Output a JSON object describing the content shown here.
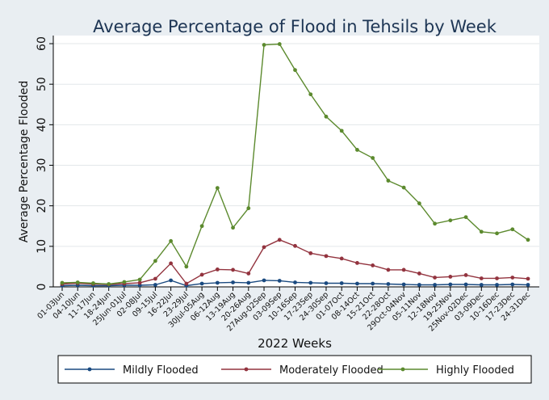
{
  "chart_data": {
    "type": "line",
    "title": "Average Percentage of Flood in Tehsils by Week",
    "xlabel": "2022 Weeks",
    "ylabel": "Average Percentage Flooded",
    "ylim": [
      0,
      62
    ],
    "yticks": [
      0,
      10,
      20,
      30,
      40,
      50,
      60
    ],
    "grid": true,
    "legend_position": "bottom",
    "categories": [
      "01-03Jun",
      "04-10Jun",
      "11-17Jun",
      "18-24Jun",
      "25Jun-01Jul",
      "02-08Jul",
      "09-15Jul",
      "16-22Jul",
      "23-29Jul",
      "30Jul-05Aug",
      "06-12Aug",
      "13-19Aug",
      "20-26Aug",
      "27Aug-02Sep",
      "03-09Sep",
      "10-16Sep",
      "17-23Sep",
      "24-30Sep",
      "01-07Oct",
      "08-14Oct",
      "15-21Oct",
      "22-28Oct",
      "29Oct-04Nov",
      "05-11Nov",
      "12-18Nov",
      "19-25Nov",
      "25Nov-02Dec",
      "03-09Dec",
      "10-16Dec",
      "17-23Dec",
      "24-31Dec"
    ],
    "series": [
      {
        "name": "Mildly Flooded",
        "color": "#1a4a80",
        "values": [
          0.3,
          0.4,
          0.3,
          0.3,
          0.4,
          0.4,
          0.5,
          1.6,
          0.3,
          0.8,
          1.0,
          1.1,
          1.0,
          1.6,
          1.5,
          1.1,
          1.0,
          0.9,
          0.9,
          0.8,
          0.8,
          0.7,
          0.6,
          0.5,
          0.5,
          0.6,
          0.6,
          0.5,
          0.5,
          0.6,
          0.5
        ]
      },
      {
        "name": "Moderately Flooded",
        "color": "#93343f",
        "values": [
          0.7,
          0.9,
          0.7,
          0.6,
          0.8,
          1.0,
          2.0,
          5.8,
          0.8,
          3.0,
          4.3,
          4.2,
          3.3,
          9.8,
          11.6,
          10.1,
          8.3,
          7.6,
          7.0,
          5.9,
          5.3,
          4.2,
          4.2,
          3.3,
          2.3,
          2.5,
          2.9,
          2.1,
          2.1,
          2.3,
          2.0
        ]
      },
      {
        "name": "Highly Flooded",
        "color": "#5c8a2e",
        "values": [
          1.0,
          1.1,
          0.9,
          0.7,
          1.2,
          1.8,
          6.4,
          11.3,
          5.0,
          15.0,
          24.4,
          14.6,
          19.4,
          59.7,
          59.9,
          53.5,
          47.5,
          42.0,
          38.5,
          33.8,
          31.8,
          26.2,
          24.5,
          20.6,
          15.6,
          16.4,
          17.2,
          13.6,
          13.2,
          14.2,
          11.6
        ]
      }
    ]
  }
}
